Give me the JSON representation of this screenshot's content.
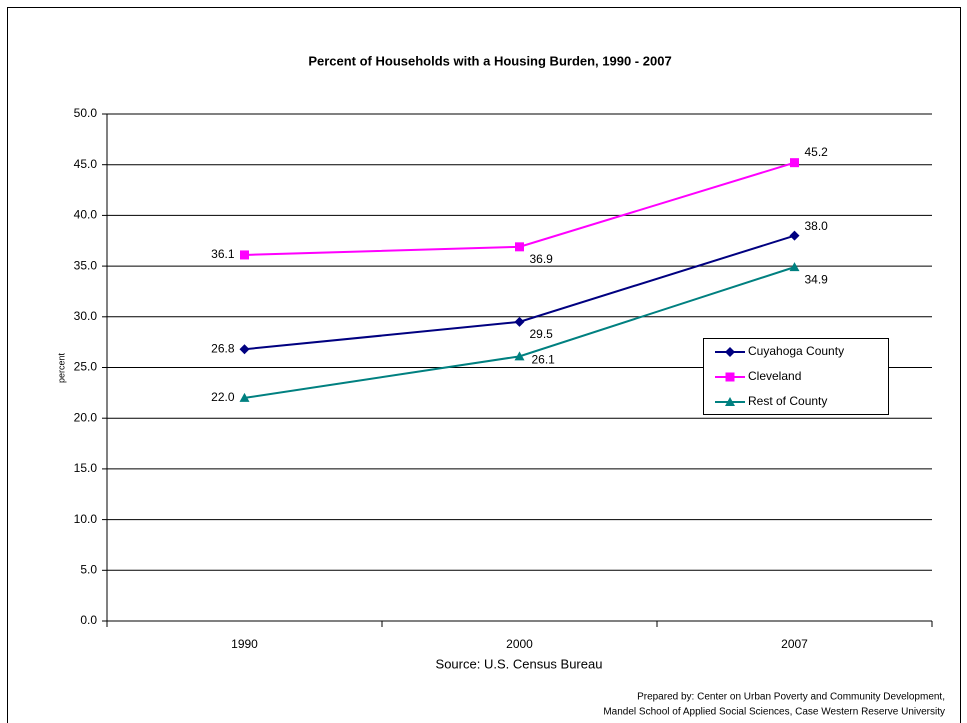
{
  "chart_data": {
    "type": "line",
    "title": "Percent of Households with a Housing Burden, 1990 - 2007",
    "y_label": "percent",
    "source": "Source: U.S. Census Bureau",
    "credit": [
      "Prepared by: Center on Urban Poverty and Community Development,",
      "Mandel School of Applied Social Sciences, Case Western Reserve University"
    ],
    "categories": [
      "1990",
      "2000",
      "2007"
    ],
    "series": [
      {
        "name": "Cuyahoga County",
        "color": "#000080",
        "marker": "diamond",
        "values": [
          26.8,
          29.5,
          38.0
        ],
        "value_labels": [
          "26.8",
          "29.5",
          "38.0"
        ]
      },
      {
        "name": "Cleveland",
        "color": "#ff00ff",
        "marker": "square",
        "values": [
          36.1,
          36.9,
          45.2
        ],
        "value_labels": [
          "36.1",
          "36.9",
          "45.2"
        ]
      },
      {
        "name": "Rest of County",
        "color": "#008080",
        "marker": "triangle",
        "values": [
          22.0,
          26.1,
          34.9
        ],
        "value_labels": [
          "22.0",
          "26.1",
          "34.9"
        ]
      }
    ],
    "ylim": [
      0,
      50
    ],
    "yticks": [
      {
        "value": 0,
        "label": "0.0"
      },
      {
        "value": 5,
        "label": "5.0"
      },
      {
        "value": 10,
        "label": "10.0"
      },
      {
        "value": 15,
        "label": "15.0"
      },
      {
        "value": 20,
        "label": "20.0"
      },
      {
        "value": 25,
        "label": "25.0"
      },
      {
        "value": 30,
        "label": "30.0"
      },
      {
        "value": 35,
        "label": "35.0"
      },
      {
        "value": 40,
        "label": "40.0"
      },
      {
        "value": 45,
        "label": "45.0"
      },
      {
        "value": 50,
        "label": "50.0"
      }
    ],
    "grid": true,
    "legend": "right"
  }
}
